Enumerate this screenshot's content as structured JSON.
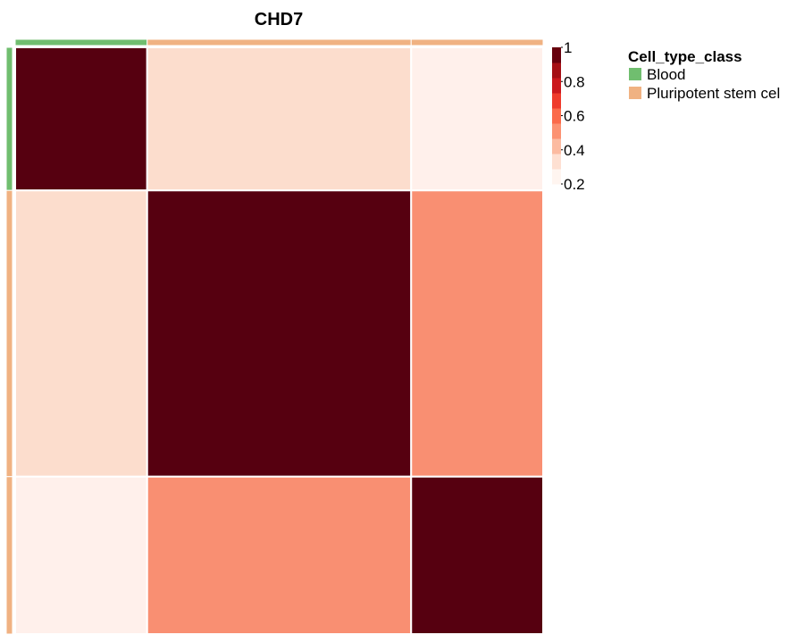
{
  "chart_data": {
    "type": "heatmap",
    "title": "CHD7",
    "row_groups": [
      "Blood",
      "Pluripotent stem cel",
      "Pluripotent stem cel"
    ],
    "col_groups": [
      "Blood",
      "Pluripotent stem cel",
      "Pluripotent stem cel"
    ],
    "block_widths": [
      1,
      2,
      1
    ],
    "block_heights": [
      1,
      2,
      1.1
    ],
    "values": [
      [
        1.0,
        0.35,
        0.25
      ],
      [
        0.35,
        1.0,
        0.5
      ],
      [
        0.25,
        0.5,
        1.0
      ]
    ],
    "colorbar": {
      "ticks": [
        "1",
        "0.8",
        "0.6",
        "0.4",
        "0.2"
      ],
      "range": [
        0.2,
        1.0
      ],
      "colors": [
        "#fff5f0",
        "#fee0d2",
        "#fcbba1",
        "#fc9272",
        "#fb6a4a",
        "#ef3b2c",
        "#cb181d",
        "#a50f15",
        "#67000d"
      ]
    },
    "cell_colors": [
      [
        "#560010",
        "#fcddcd",
        "#fff0eb"
      ],
      [
        "#fcddcd",
        "#560010",
        "#f98f72"
      ],
      [
        "#fff0eb",
        "#f98f72",
        "#560010"
      ]
    ],
    "legend": {
      "title": "Cell_type_class",
      "items": [
        {
          "label": "Blood",
          "color": "#70be6f"
        },
        {
          "label": "Pluripotent stem cel",
          "color": "#f0b282"
        }
      ]
    }
  }
}
